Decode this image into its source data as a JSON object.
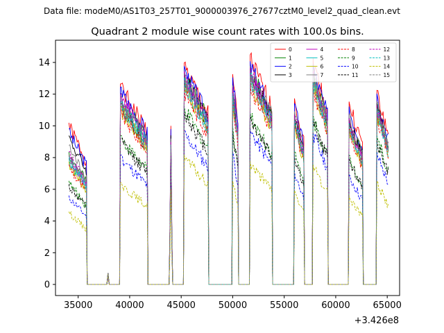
{
  "chart_data": {
    "type": "line",
    "suptitle": "Data file: modeM0/AS1T03_257T01_9000003976_27677cztM0_level2_quad_clean.evt",
    "title": "Quadrant 2 module wise count rates with 100.0s bins.",
    "xlabel": "",
    "ylabel": "",
    "x_offset_label": "+3.426e8",
    "xlim": [
      32800,
      66200
    ],
    "ylim": [
      -0.7,
      15.4
    ],
    "x_ticks": [
      35000,
      40000,
      45000,
      50000,
      55000,
      60000,
      65000
    ],
    "x_tick_labels": [
      "35000",
      "40000",
      "45000",
      "50000",
      "55000",
      "60000",
      "65000"
    ],
    "y_ticks": [
      0,
      2,
      4,
      6,
      8,
      10,
      12,
      14
    ],
    "y_tick_labels": [
      "0",
      "2",
      "4",
      "6",
      "8",
      "10",
      "12",
      "14"
    ],
    "segments": [
      {
        "start": 34100,
        "end": 35800
      },
      {
        "start": 39100,
        "end": 41700
      },
      {
        "start": 43900,
        "end": 44100
      },
      {
        "start": 45300,
        "end": 47600
      },
      {
        "start": 50000,
        "end": 50500
      },
      {
        "start": 51700,
        "end": 53800
      },
      {
        "start": 56000,
        "end": 56900
      },
      {
        "start": 57800,
        "end": 59200
      },
      {
        "start": 61300,
        "end": 62600
      },
      {
        "start": 64000,
        "end": 65100
      }
    ],
    "gap_bump": {
      "x": 37900,
      "value": 0.6
    },
    "series": [
      {
        "name": "0",
        "color": "#ff0000",
        "dash": "solid",
        "levels": [
          10.0,
          12.4,
          10.0,
          13.7,
          13.0,
          14.2,
          11.5,
          14.0,
          11.3,
          12.0
        ]
      },
      {
        "name": "1",
        "color": "#008000",
        "dash": "solid",
        "levels": [
          8.2,
          11.8,
          9.0,
          13.3,
          12.4,
          13.5,
          10.4,
          13.3,
          10.3,
          11.2
        ]
      },
      {
        "name": "2",
        "color": "#0000ff",
        "dash": "solid",
        "levels": [
          9.6,
          12.2,
          9.8,
          13.5,
          12.8,
          13.8,
          11.2,
          13.6,
          11.0,
          11.8
        ]
      },
      {
        "name": "3",
        "color": "#000000",
        "dash": "solid",
        "levels": [
          9.2,
          11.2,
          9.4,
          13.1,
          12.1,
          13.3,
          10.6,
          13.0,
          10.3,
          11.2
        ]
      },
      {
        "name": "4",
        "color": "#bf00bf",
        "dash": "solid",
        "levels": [
          8.0,
          11.6,
          9.0,
          12.9,
          12.0,
          13.2,
          10.3,
          13.0,
          10.1,
          11.0
        ]
      },
      {
        "name": "5",
        "color": "#00bfbf",
        "dash": "solid",
        "levels": [
          7.8,
          11.4,
          8.8,
          12.7,
          11.8,
          13.0,
          10.2,
          12.8,
          10.0,
          10.9
        ]
      },
      {
        "name": "6",
        "color": "#bfbf00",
        "dash": "solid",
        "levels": [
          7.6,
          11.0,
          8.6,
          12.5,
          11.5,
          12.7,
          10.0,
          12.6,
          9.8,
          10.7
        ]
      },
      {
        "name": "7",
        "color": "#808080",
        "dash": "solid",
        "levels": [
          8.6,
          11.6,
          9.2,
          13.1,
          12.3,
          13.5,
          10.7,
          13.3,
          10.5,
          11.3
        ]
      },
      {
        "name": "8",
        "color": "#ff0000",
        "dash": "dashed",
        "levels": [
          7.4,
          10.8,
          8.4,
          12.2,
          11.2,
          12.5,
          9.8,
          12.3,
          9.6,
          10.5
        ]
      },
      {
        "name": "9",
        "color": "#008000",
        "dash": "dashed",
        "levels": [
          6.4,
          9.2,
          8.0,
          11.0,
          9.8,
          10.6,
          8.2,
          10.4,
          8.0,
          9.2
        ]
      },
      {
        "name": "10",
        "color": "#0000ff",
        "dash": "dashed",
        "levels": [
          5.5,
          8.0,
          7.0,
          9.5,
          8.2,
          9.6,
          7.0,
          9.4,
          6.8,
          8.2
        ]
      },
      {
        "name": "11",
        "color": "#000000",
        "dash": "dashed",
        "levels": [
          6.2,
          9.0,
          7.8,
          10.8,
          9.5,
          10.4,
          8.0,
          10.2,
          7.8,
          9.0
        ]
      },
      {
        "name": "12",
        "color": "#bf00bf",
        "dash": "dashed",
        "levels": [
          8.2,
          11.8,
          9.0,
          13.2,
          12.2,
          13.4,
          10.5,
          13.2,
          10.3,
          11.1
        ]
      },
      {
        "name": "13",
        "color": "#00bfbf",
        "dash": "dashed",
        "levels": [
          7.9,
          11.3,
          8.8,
          12.8,
          11.8,
          13.0,
          10.1,
          12.8,
          10.0,
          10.8
        ]
      },
      {
        "name": "14",
        "color": "#bfbf00",
        "dash": "dashed",
        "levels": [
          4.5,
          6.3,
          6.0,
          8.0,
          6.4,
          7.6,
          5.8,
          7.4,
          5.5,
          6.4
        ]
      },
      {
        "name": "15",
        "color": "#808080",
        "dash": "dashed",
        "levels": [
          8.0,
          11.2,
          8.8,
          12.6,
          11.6,
          12.9,
          10.2,
          12.8,
          9.9,
          10.9
        ]
      }
    ]
  }
}
